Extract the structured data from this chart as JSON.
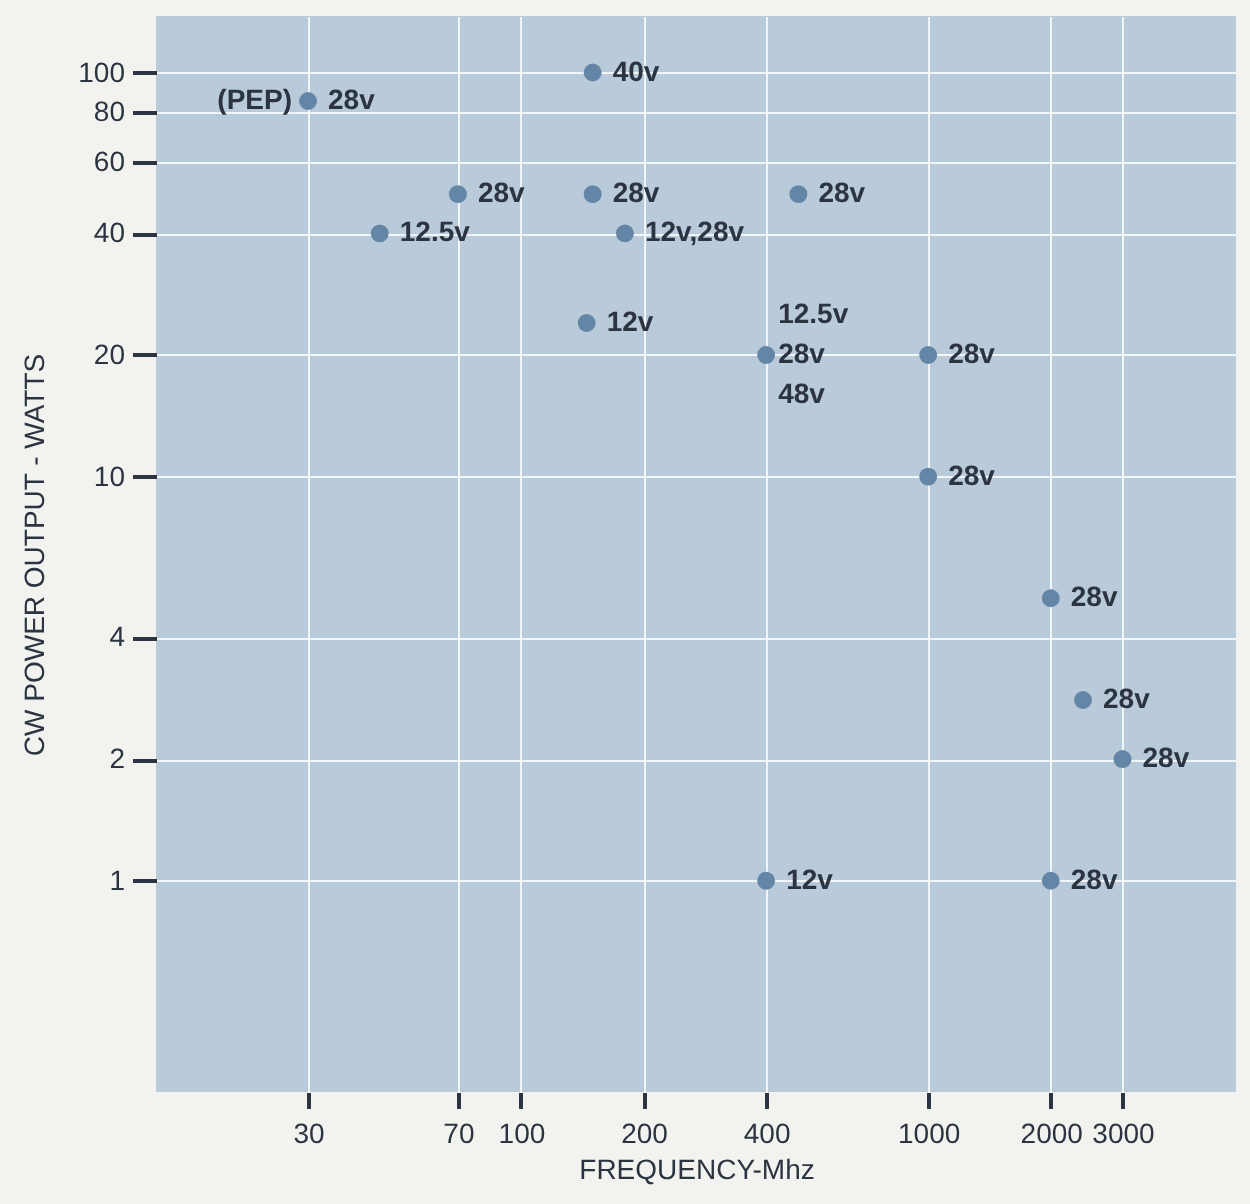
{
  "chart_data": {
    "type": "scatter",
    "xlabel": "FREQUENCY-Mhz",
    "ylabel": "CW POWER OUTPUT - WATTS",
    "log": "xy",
    "grid": true,
    "marker": "circle",
    "xlim": [
      12.7,
      5700
    ],
    "ylim": [
      0.3,
      138
    ],
    "xticks": [
      30,
      70,
      100,
      200,
      400,
      1000,
      2000,
      3000
    ],
    "yticks": [
      1,
      2,
      4,
      10,
      20,
      40,
      60,
      80,
      100
    ],
    "series": [
      {
        "color": "#6486a6",
        "x": [
          30,
          150,
          70,
          45,
          150,
          180,
          480,
          145,
          400,
          1000,
          1000,
          2000,
          2400,
          3000,
          400,
          2000
        ],
        "values": [
          85,
          100,
          50,
          40,
          50,
          40,
          50,
          24,
          20,
          20,
          10,
          5,
          2.8,
          2,
          1,
          1
        ]
      }
    ],
    "annotations": [
      {
        "text": "(PEP)",
        "x": 30,
        "y": 85
      },
      {
        "text": "28v",
        "x": 30,
        "y": 85
      },
      {
        "text": "40v",
        "x": 150,
        "y": 100
      },
      {
        "text": "28v",
        "x": 70,
        "y": 50
      },
      {
        "text": "12.5v",
        "x": 45,
        "y": 40
      },
      {
        "text": "28v",
        "x": 150,
        "y": 50
      },
      {
        "text": "12v,28v",
        "x": 180,
        "y": 40
      },
      {
        "text": "28v",
        "x": 480,
        "y": 50
      },
      {
        "text": "12v",
        "x": 145,
        "y": 24
      },
      {
        "text": "12.5v",
        "x": 400,
        "y": 20
      },
      {
        "text": "28v",
        "x": 400,
        "y": 20
      },
      {
        "text": "48v",
        "x": 400,
        "y": 20
      },
      {
        "text": "28v",
        "x": 1000,
        "y": 20
      },
      {
        "text": "28v",
        "x": 1000,
        "y": 10
      },
      {
        "text": "28v",
        "x": 2000,
        "y": 5
      },
      {
        "text": "28v",
        "x": 2400,
        "y": 2.8
      },
      {
        "text": "28v",
        "x": 3000,
        "y": 2
      },
      {
        "text": "12v",
        "x": 400,
        "y": 1
      },
      {
        "text": "28v",
        "x": 2000,
        "y": 1
      }
    ]
  }
}
